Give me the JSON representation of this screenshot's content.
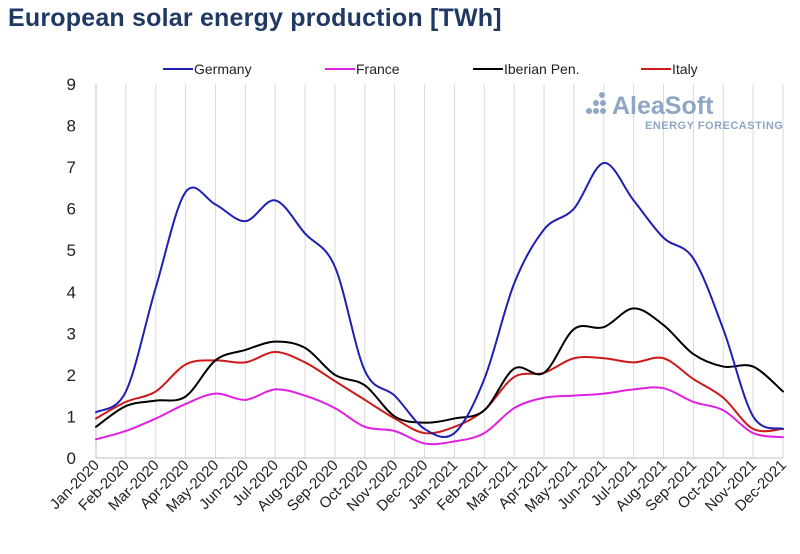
{
  "chart_data": {
    "type": "line",
    "title": "European solar energy production [TWh]",
    "xlabel": "",
    "ylabel": "",
    "ylim": [
      0,
      9
    ],
    "yticks": [
      0,
      1,
      2,
      3,
      4,
      5,
      6,
      7,
      8,
      9
    ],
    "grid": "vertical",
    "legend": "top",
    "categories": [
      "Jan-2020",
      "Feb-2020",
      "Mar-2020",
      "Apr-2020",
      "May-2020",
      "Jun-2020",
      "Jul-2020",
      "Aug-2020",
      "Sep-2020",
      "Oct-2020",
      "Nov-2020",
      "Dec-2020",
      "Jan-2021",
      "Feb-2021",
      "Mar-2021",
      "Apr-2021",
      "May-2021",
      "Jun-2021",
      "Jul-2021",
      "Aug-2021",
      "Sep-2021",
      "Oct-2021",
      "Nov-2021",
      "Dec-2021"
    ],
    "series": [
      {
        "name": "Germany",
        "color": "#1f1fb4",
        "values": [
          1.1,
          1.6,
          4.1,
          6.4,
          6.1,
          5.7,
          6.2,
          5.4,
          4.6,
          2.1,
          1.5,
          0.7,
          0.6,
          1.9,
          4.2,
          5.5,
          6.0,
          7.1,
          6.2,
          5.3,
          4.8,
          3.1,
          1.0,
          0.7
        ]
      },
      {
        "name": "France",
        "color": "#e020e0",
        "values": [
          0.45,
          0.65,
          0.95,
          1.3,
          1.55,
          1.4,
          1.65,
          1.5,
          1.2,
          0.75,
          0.65,
          0.35,
          0.4,
          0.6,
          1.2,
          1.45,
          1.5,
          1.55,
          1.65,
          1.68,
          1.35,
          1.15,
          0.6,
          0.5
        ]
      },
      {
        "name": "Iberian Pen.",
        "color": "#000000",
        "values": [
          0.75,
          1.25,
          1.38,
          1.48,
          2.35,
          2.6,
          2.8,
          2.65,
          2.0,
          1.75,
          1.0,
          0.85,
          0.95,
          1.15,
          2.15,
          2.05,
          3.1,
          3.15,
          3.6,
          3.2,
          2.5,
          2.2,
          2.2,
          1.6
        ]
      },
      {
        "name": "Italy",
        "color": "#cc1a1a",
        "values": [
          0.95,
          1.35,
          1.6,
          2.25,
          2.35,
          2.3,
          2.55,
          2.3,
          1.85,
          1.4,
          0.95,
          0.6,
          0.75,
          1.15,
          1.95,
          2.05,
          2.4,
          2.4,
          2.3,
          2.4,
          1.9,
          1.45,
          0.7,
          0.7
        ]
      }
    ]
  },
  "logo": {
    "name": "AleaSoft",
    "tagline": "ENERGY FORECASTING"
  }
}
